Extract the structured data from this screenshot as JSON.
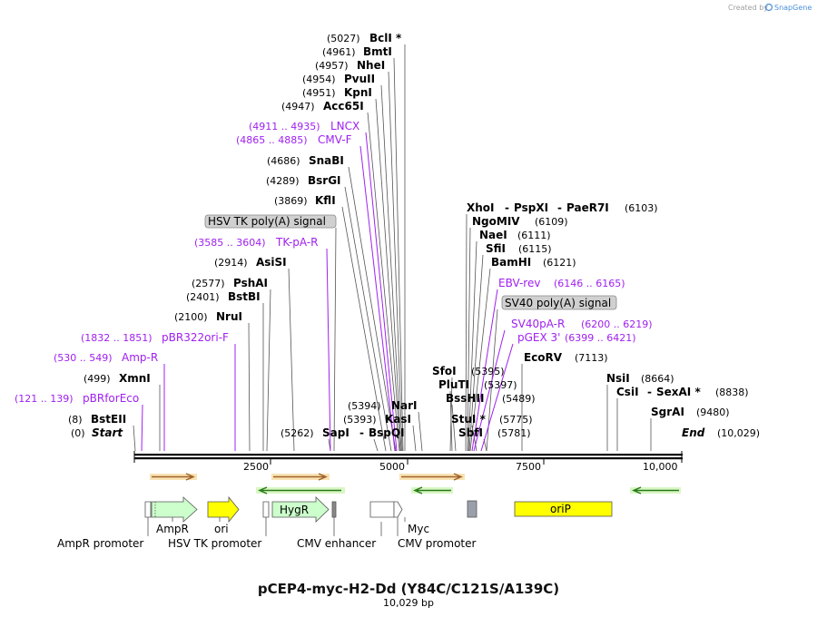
{
  "credit": {
    "prefix": "Created by",
    "brand": "SnapGene"
  },
  "title": "pCEP4-myc-H2-Dd (Y84C/C121S/A139C)",
  "subtitle": "10,029 bp",
  "ends": {
    "start_label": "Start",
    "start_coord": "(0)",
    "end_label": "End",
    "end_coord": "(10,029)"
  },
  "ruler": [
    "2500",
    "5000",
    "7500",
    "10,000"
  ],
  "enzymes": {
    "bcli": {
      "name": "BclI *",
      "coord": "(5027)"
    },
    "bmti": {
      "name": "BmtI",
      "coord": "(4961)"
    },
    "nhei": {
      "name": "NheI",
      "coord": "(4957)"
    },
    "pvuii": {
      "name": "PvuII",
      "coord": "(4954)"
    },
    "kpni": {
      "name": "KpnI",
      "coord": "(4951)"
    },
    "acc65i": {
      "name": "Acc65I",
      "coord": "(4947)"
    },
    "snabi": {
      "name": "SnaBI",
      "coord": "(4686)"
    },
    "bsrgi": {
      "name": "BsrGI",
      "coord": "(4289)"
    },
    "kfli": {
      "name": "KflI",
      "coord": "(3869)"
    },
    "asisi": {
      "name": "AsiSI",
      "coord": "(2914)"
    },
    "pshai": {
      "name": "PshAI",
      "coord": "(2577)"
    },
    "bstbi": {
      "name": "BstBI",
      "coord": "(2401)"
    },
    "nrui": {
      "name": "NruI",
      "coord": "(2100)"
    },
    "xmni": {
      "name": "XmnI",
      "coord": "(499)"
    },
    "bsteii": {
      "name": "BstEII",
      "coord": "(8)"
    },
    "sapi": {
      "name": "SapI",
      "coord": "(5262)"
    },
    "nari": {
      "name": "NarI",
      "coord": "(5394)"
    },
    "kasi": {
      "name": "KasI",
      "coord": "(5393)"
    },
    "bspqi": {
      "name": "BspQI"
    },
    "xhoi": {
      "name": "XhoI"
    },
    "pspxi": {
      "name": "PspXI"
    },
    "paer7i": {
      "name": "PaeR7I",
      "coord": "(6103)"
    },
    "ngomiv": {
      "name": "NgoMIV",
      "coord": "(6109)"
    },
    "naei": {
      "name": "NaeI",
      "coord": "(6111)"
    },
    "sfii": {
      "name": "SfiI",
      "coord": "(6115)"
    },
    "bamhi": {
      "name": "BamHI",
      "coord": "(6121)"
    },
    "sfoi": {
      "name": "SfoI",
      "coord": "(5395)"
    },
    "plui": {
      "name": "PluTI",
      "coord": "(5397)"
    },
    "bsshii": {
      "name": "BssHII",
      "coord": "(5489)"
    },
    "stui": {
      "name": "StuI *",
      "coord": "(5775)"
    },
    "sbfi": {
      "name": "SbfI",
      "coord": "(5781)"
    },
    "ecorv": {
      "name": "EcoRV",
      "coord": "(7113)"
    },
    "nsii": {
      "name": "NsiI",
      "coord": "(8664)"
    },
    "csii": {
      "name": "CsiI"
    },
    "sexai": {
      "name": "SexAI *",
      "coord": "(8838)"
    },
    "sgrai": {
      "name": "SgrAI",
      "coord": "(9480)"
    }
  },
  "primers": {
    "lncx": {
      "name": "LNCX",
      "range": "(4911 .. 4935)"
    },
    "cmvf": {
      "name": "CMV-F",
      "range": "(4865 .. 4885)"
    },
    "tkpar": {
      "name": "TK-pA-R",
      "range": "(3585 .. 3604)"
    },
    "pbr322": {
      "name": "pBR322ori-F",
      "range": "(1832 .. 1851)"
    },
    "ampr": {
      "name": "Amp-R",
      "range": "(530 .. 549)"
    },
    "pbrfor": {
      "name": "pBRforEco",
      "range": "(121 .. 139)"
    },
    "ebvrev": {
      "name": "EBV-rev",
      "range": "(6146 .. 6165)"
    },
    "sv40par": {
      "name": "SV40pA-R",
      "range": "(6200 .. 6219)"
    },
    "pgex3": {
      "name": "pGEX 3'",
      "range": "(6399 .. 6421)"
    }
  },
  "boxed": {
    "hsvtk": "HSV TK poly(A) signal",
    "sv40": "SV40 poly(A) signal"
  },
  "features": {
    "ampr": "AmpR",
    "ori": "ori",
    "hygr": "HygR",
    "orip": "oriP",
    "myc": "Myc",
    "ampr_promoter": "AmpR promoter",
    "hsv_tk_promoter": "HSV TK promoter",
    "cmv_enhancer": "CMV enhancer",
    "cmv_promoter": "CMV promoter"
  },
  "colors": {
    "enzyme_line": "#555555",
    "primer": "#a020f0",
    "orf_fill": "#ccffcc",
    "ori_fill": "#ffff00",
    "orange_arrow": "#e8a040",
    "green_arrow": "#66cc44",
    "box_fill": "#d0d0d0"
  }
}
